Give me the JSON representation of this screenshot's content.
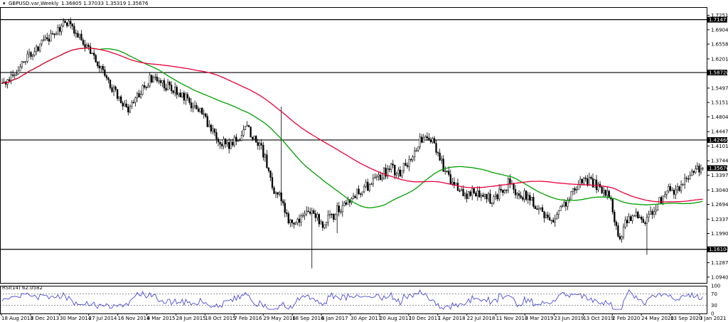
{
  "header": {
    "symbol": "GBPUSD.var,Weekly",
    "ohlc": "1.36805 1.37033 1.35319 1.35676"
  },
  "rsi_label": "RSI(14) 62.0582",
  "colors": {
    "candle": "#000000",
    "ma_fast": "#00a000",
    "ma_slow": "#e8003a",
    "rsi_line": "#3a3ad0",
    "level_line": "#000000",
    "price_box_bg": "#000000",
    "price_box_fg": "#ffffff"
  },
  "chart_data": [
    {
      "type": "candlestick",
      "title": "",
      "price_ticks": [
        "1.72515",
        "1.69045",
        "1.65580",
        "1.62010",
        "1.58720",
        "1.54975",
        "1.51510",
        "1.48045",
        "1.44475",
        "1.42460",
        "1.41010",
        "1.37440",
        "1.35676",
        "1.33975",
        "1.30405",
        "1.26940",
        "1.23370",
        "1.19905",
        "1.16104",
        "1.12870",
        "1.09405"
      ],
      "ylim": [
        1.08,
        1.745
      ],
      "levels": [
        1.71473,
        1.5872,
        1.4246,
        1.16104
      ],
      "level_labels": [
        "1.71473",
        "1.58720",
        "1.42460",
        "1.16104"
      ],
      "current_price": 1.35676,
      "current_price_label": "1.35676",
      "x_ticks": [
        "18 Aug 2013",
        "8 Dec 2013",
        "30 Mar 2014",
        "27 Jul 2014",
        "16 Nov 2014",
        "8 Mar 2015",
        "28 Jun 2015",
        "18 Oct 2015",
        "7 Feb 2016",
        "29 May 2016",
        "18 Sep 2016",
        "8 Jan 2017",
        "30 Apr 2017",
        "20 Aug 2017",
        "10 Dec 2017",
        "1 Apr 2018",
        "22 Jul 2018",
        "11 Nov 2018",
        "3 Mar 2019",
        "23 Jun 2019",
        "13 Oct 2019",
        "2 Feb 2020",
        "24 May 2020",
        "13 Sep 2020",
        "3 Jan 2021"
      ],
      "price_path": [
        1.555,
        1.58,
        1.6,
        1.63,
        1.64,
        1.66,
        1.68,
        1.7,
        1.71,
        1.68,
        1.65,
        1.62,
        1.59,
        1.55,
        1.52,
        1.5,
        1.53,
        1.56,
        1.58,
        1.56,
        1.55,
        1.53,
        1.52,
        1.5,
        1.48,
        1.44,
        1.42,
        1.41,
        1.43,
        1.45,
        1.43,
        1.39,
        1.31,
        1.29,
        1.22,
        1.23,
        1.25,
        1.24,
        1.22,
        1.24,
        1.26,
        1.28,
        1.3,
        1.31,
        1.32,
        1.34,
        1.36,
        1.34,
        1.37,
        1.41,
        1.43,
        1.42,
        1.37,
        1.33,
        1.31,
        1.29,
        1.3,
        1.29,
        1.28,
        1.3,
        1.32,
        1.3,
        1.29,
        1.27,
        1.25,
        1.22,
        1.25,
        1.28,
        1.31,
        1.33,
        1.32,
        1.31,
        1.29,
        1.18,
        1.23,
        1.24,
        1.23,
        1.25,
        1.28,
        1.31,
        1.3,
        1.33,
        1.35,
        1.36
      ]
    },
    {
      "type": "line",
      "title": "",
      "ylim": [
        0,
        100
      ],
      "y_ticks": [
        "100",
        "70",
        "30",
        "0"
      ],
      "guides": [
        70,
        30
      ]
    }
  ]
}
